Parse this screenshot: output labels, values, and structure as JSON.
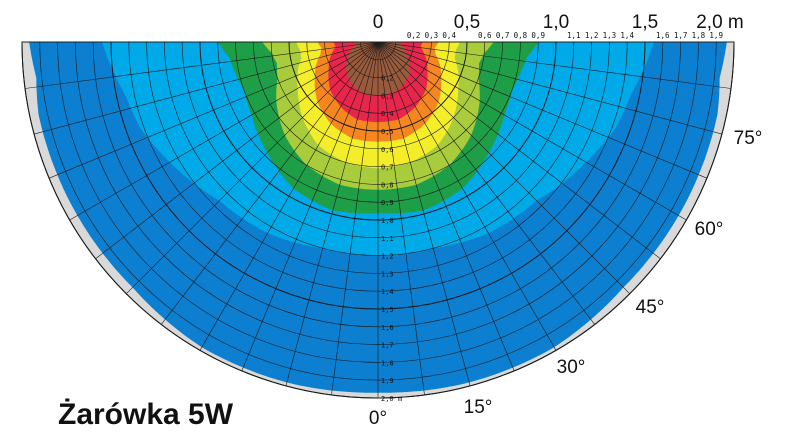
{
  "chart_data": {
    "type": "polar-illuminance",
    "title": "Żarówka 5W",
    "radial_unit": "m",
    "top_axis_labels": [
      "0",
      "0,5",
      "1,0",
      "1,5",
      "2,0 m"
    ],
    "top_axis_small_labels": [
      "0,2",
      "0,3",
      "0,4",
      "0,6",
      "0,7",
      "0,8",
      "0,9",
      "1,1",
      "1,2",
      "1,3",
      "1,4",
      "1,6",
      "1,7",
      "1,8",
      "1,9"
    ],
    "ring_labels": [
      "0,2",
      "0,3",
      "0,4",
      "0,5",
      "0,6",
      "0,7",
      "0,8",
      "0,9",
      "1,0",
      "1,1",
      "1,2",
      "1,3",
      "1,4",
      "1,5",
      "1,6",
      "1,7",
      "1,8",
      "1,9",
      "2,0 m"
    ],
    "angle_labels": [
      "0°",
      "15°",
      "30°",
      "45°",
      "60°",
      "75°"
    ],
    "angles_deg": [
      0,
      15,
      30,
      45,
      60,
      75
    ],
    "max_radius_m": 2.0,
    "zone_colors": [
      "#9a5a3c",
      "#e8254a",
      "#f6861f",
      "#f4ee2a",
      "#a8cc3c",
      "#1f9e48",
      "#00a9e8",
      "#0c7fd0",
      "#d9d9d9"
    ],
    "zones": [
      {
        "color": "#0c7fd0",
        "boundary": [
          [
            0,
            1.97
          ],
          [
            15,
            1.98
          ],
          [
            30,
            1.98
          ],
          [
            45,
            1.95
          ],
          [
            60,
            1.95
          ],
          [
            70,
            1.95
          ],
          [
            78,
            1.95
          ],
          [
            84,
            1.93
          ],
          [
            90,
            1.96
          ]
        ]
      },
      {
        "color": "#00a9e8",
        "boundary": [
          [
            0,
            1.2
          ],
          [
            15,
            1.2
          ],
          [
            30,
            1.24
          ],
          [
            45,
            1.26
          ],
          [
            60,
            1.35
          ],
          [
            70,
            1.42
          ],
          [
            78,
            1.45
          ],
          [
            84,
            1.5
          ],
          [
            90,
            1.55
          ]
        ]
      },
      {
        "color": "#1f9e48",
        "boundary": [
          [
            0,
            0.96
          ],
          [
            15,
            0.98
          ],
          [
            30,
            0.95
          ],
          [
            45,
            0.88
          ],
          [
            60,
            0.82
          ],
          [
            70,
            0.8
          ],
          [
            78,
            0.82
          ],
          [
            84,
            0.84
          ],
          [
            90,
            0.9
          ]
        ]
      },
      {
        "color": "#a8cc3c",
        "boundary": [
          [
            0,
            0.83
          ],
          [
            15,
            0.83
          ],
          [
            30,
            0.8
          ],
          [
            45,
            0.74
          ],
          [
            60,
            0.66
          ],
          [
            70,
            0.6
          ],
          [
            78,
            0.58
          ],
          [
            84,
            0.6
          ],
          [
            90,
            0.65
          ]
        ]
      },
      {
        "color": "#f4ee2a",
        "boundary": [
          [
            0,
            0.71
          ],
          [
            15,
            0.7
          ],
          [
            30,
            0.67
          ],
          [
            45,
            0.6
          ],
          [
            60,
            0.52
          ],
          [
            70,
            0.48
          ],
          [
            78,
            0.44
          ],
          [
            84,
            0.44
          ],
          [
            90,
            0.46
          ]
        ]
      },
      {
        "color": "#f6861f",
        "boundary": [
          [
            0,
            0.56
          ],
          [
            15,
            0.56
          ],
          [
            30,
            0.53
          ],
          [
            45,
            0.48
          ],
          [
            60,
            0.41
          ],
          [
            70,
            0.37
          ],
          [
            78,
            0.33
          ],
          [
            84,
            0.32
          ],
          [
            90,
            0.34
          ]
        ]
      },
      {
        "color": "#e8254a",
        "boundary": [
          [
            0,
            0.45
          ],
          [
            15,
            0.45
          ],
          [
            30,
            0.42
          ],
          [
            45,
            0.38
          ],
          [
            60,
            0.32
          ],
          [
            70,
            0.29
          ],
          [
            78,
            0.26
          ],
          [
            84,
            0.24
          ],
          [
            90,
            0.25
          ]
        ]
      },
      {
        "color": "#9a5a3c",
        "boundary": [
          [
            0,
            0.3
          ],
          [
            15,
            0.3
          ],
          [
            30,
            0.28
          ],
          [
            45,
            0.25
          ],
          [
            60,
            0.2
          ],
          [
            70,
            0.17
          ],
          [
            78,
            0.15
          ],
          [
            84,
            0.13
          ],
          [
            90,
            0.13
          ]
        ]
      }
    ],
    "grid": true
  }
}
